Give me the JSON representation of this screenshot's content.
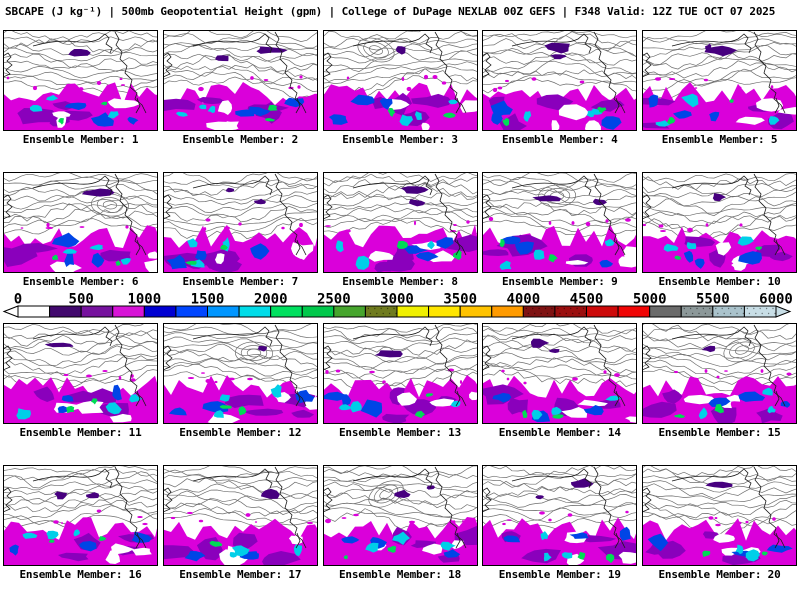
{
  "title": {
    "full": "SBCAPE (J kg⁻¹) | 500mb Geopotential Height (gpm) | College of DuPage NEXLAB 00Z GEFS | F348 Valid: 12Z TUE OCT 07 2025",
    "parameter": "SBCAPE (J kg⁻¹)",
    "overlay": "500mb Geopotential Height (gpm)",
    "source": "College of DuPage NEXLAB 00Z GEFS",
    "forecast_hour": "F348",
    "valid": "12Z TUE OCT 07 2025"
  },
  "panels": [
    {
      "id": 1,
      "caption": "Ensemble Member: 1"
    },
    {
      "id": 2,
      "caption": "Ensemble Member: 2"
    },
    {
      "id": 3,
      "caption": "Ensemble Member: 3"
    },
    {
      "id": 4,
      "caption": "Ensemble Member: 4"
    },
    {
      "id": 5,
      "caption": "Ensemble Member: 5"
    },
    {
      "id": 6,
      "caption": "Ensemble Member: 6"
    },
    {
      "id": 7,
      "caption": "Ensemble Member: 7"
    },
    {
      "id": 8,
      "caption": "Ensemble Member: 8"
    },
    {
      "id": 9,
      "caption": "Ensemble Member: 9"
    },
    {
      "id": 10,
      "caption": "Ensemble Member: 10"
    },
    {
      "id": 11,
      "caption": "Ensemble Member: 11"
    },
    {
      "id": 12,
      "caption": "Ensemble Member: 12"
    },
    {
      "id": 13,
      "caption": "Ensemble Member: 13"
    },
    {
      "id": 14,
      "caption": "Ensemble Member: 14"
    },
    {
      "id": 15,
      "caption": "Ensemble Member: 15"
    },
    {
      "id": 16,
      "caption": "Ensemble Member: 16"
    },
    {
      "id": 17,
      "caption": "Ensemble Member: 17"
    },
    {
      "id": 18,
      "caption": "Ensemble Member: 18"
    },
    {
      "id": 19,
      "caption": "Ensemble Member: 19"
    },
    {
      "id": 20,
      "caption": "Ensemble Member: 20"
    }
  ],
  "colorbar": {
    "ticks": [
      "0",
      "500",
      "1000",
      "1500",
      "2000",
      "2500",
      "3000",
      "3500",
      "4000",
      "4500",
      "5000",
      "5500",
      "6000"
    ],
    "cell_value_step": 250,
    "range": [
      0,
      6000
    ],
    "cells": [
      {
        "color": "#FFFFFF",
        "stipple": false
      },
      {
        "color": "#42096E",
        "stipple": false
      },
      {
        "color": "#76129E",
        "stipple": false
      },
      {
        "color": "#D714D7",
        "stipple": false
      },
      {
        "color": "#0000D2",
        "stipple": false
      },
      {
        "color": "#0046FF",
        "stipple": false
      },
      {
        "color": "#0096FF",
        "stipple": false
      },
      {
        "color": "#00DCE8",
        "stipple": false
      },
      {
        "color": "#00E05F",
        "stipple": false
      },
      {
        "color": "#00C84B",
        "stipple": false
      },
      {
        "color": "#46A52D",
        "stipple": false
      },
      {
        "color": "#6F7B1E",
        "stipple": true
      },
      {
        "color": "#F0F000",
        "stipple": false
      },
      {
        "color": "#FFE600",
        "stipple": false
      },
      {
        "color": "#FFC300",
        "stipple": false
      },
      {
        "color": "#FF9B00",
        "stipple": false
      },
      {
        "color": "#7F1313",
        "stipple": true
      },
      {
        "color": "#9B0F0F",
        "stipple": true
      },
      {
        "color": "#CD0A0A",
        "stipple": false
      },
      {
        "color": "#F00505",
        "stipple": false
      },
      {
        "color": "#6B6B6B",
        "stipple": false
      },
      {
        "color": "#8C9899",
        "stipple": true
      },
      {
        "color": "#AAC3CC",
        "stipple": true
      },
      {
        "color": "#C8DEE6",
        "stipple": true
      }
    ],
    "left_arrow_color": "#FFFFFF",
    "right_arrow_color": "#C8DEE6"
  },
  "map_style": {
    "background": "#FFFFFF",
    "contour_color": "#6E6E6E",
    "coast_color": "#1A1A1A",
    "border_color": "#000000",
    "fills": {
      "magenta": "#DA00DA",
      "purple": "#8A00BC",
      "indigo": "#47007F",
      "blue": "#0045E6",
      "cyan": "#00CFE8",
      "green": "#00DC55",
      "hole": "#FFFFFF"
    }
  }
}
